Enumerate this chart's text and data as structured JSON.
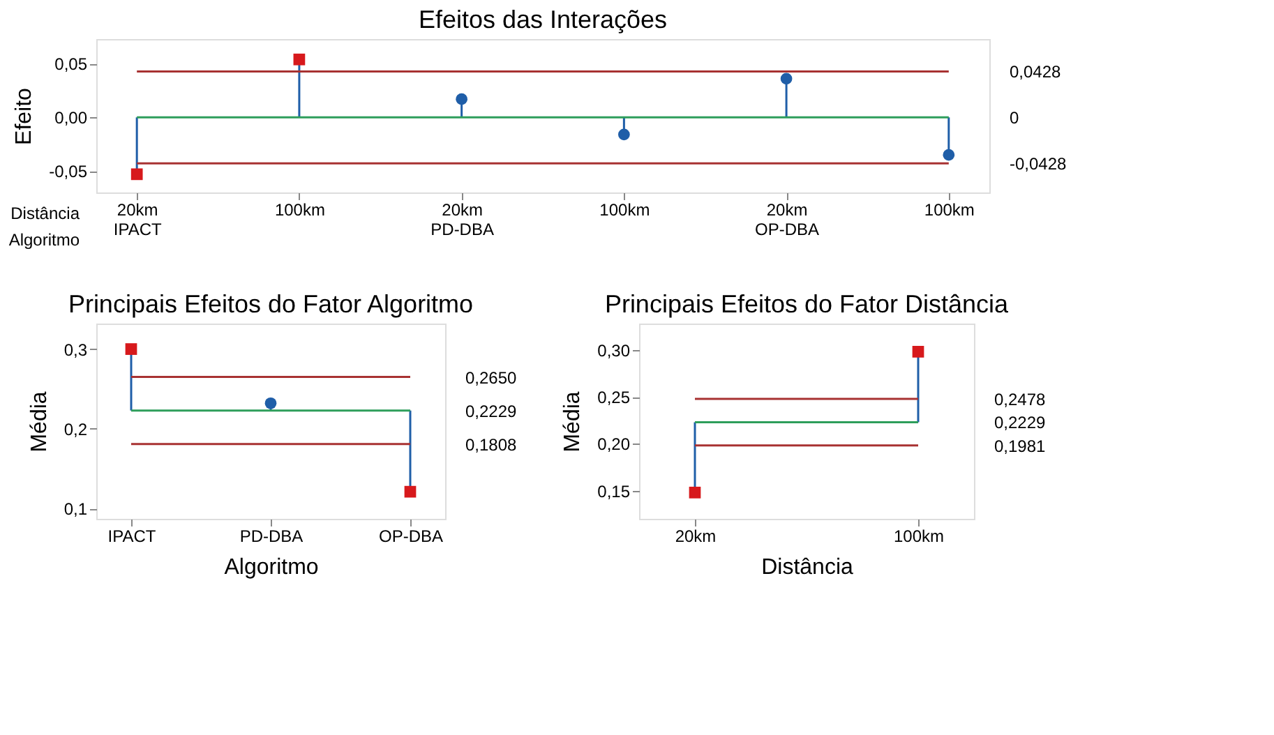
{
  "chart_data": [
    {
      "type": "scatter",
      "title": "Efeitos das Interações",
      "ylabel": "Efeito",
      "categories": [
        "20km\nIPACT",
        "100km",
        "20km\nPD-DBA",
        "100km",
        "20km\nOP-DBA",
        "100km"
      ],
      "annotations": [
        "Distância",
        "Algoritmo"
      ],
      "ylim": [
        -0.07,
        0.073
      ],
      "yticks": [
        {
          "value": -0.05,
          "label": "-0,05"
        },
        {
          "value": 0,
          "label": "0,00"
        },
        {
          "value": 0.05,
          "label": "0,05"
        }
      ],
      "y2lim": [
        -0.07,
        0.073
      ],
      "y2ticks": [
        {
          "value": -0.0428,
          "label": "-0,0428"
        },
        0,
        {
          "value": 0.0428,
          "label": "0,0428"
        }
      ],
      "grid": false,
      "series": [
        {
          "color": "#1f5ea8",
          "marker": "circle",
          "colors": [
            "#1f5ea8",
            "#1f5ea8",
            "#1f5ea8",
            "#1f5ea8",
            "#1f5ea8",
            "#1f5ea8"
          ],
          "values": [
            null,
            null,
            0.017,
            -0.016,
            0.036,
            -0.035
          ],
          "errors": [
            null,
            null,
            [
              0,
              0.017
            ],
            [
              -0.016,
              0
            ],
            [
              0,
              0.036
            ],
            [
              -0.035,
              0
            ]
          ]
        },
        {
          "color": "#1f5ea8",
          "marker": "square",
          "colors": [
            "#d7191c",
            "#d7191c",
            "#d7191c",
            "#d7191c",
            "#d7191c",
            "#d7191c"
          ],
          "values": [
            -0.053,
            0.054,
            null,
            null,
            null,
            null
          ],
          "errors": [
            [
              -0.053,
              0
            ],
            [
              0,
              0.054
            ],
            null,
            null,
            null,
            null
          ]
        }
      ],
      "ref_lines": [
        {
          "axis": "y2",
          "value": 0.0428,
          "color": "#a83232"
        },
        {
          "axis": "y2",
          "value": 0,
          "color": "#2e9e5b"
        },
        {
          "axis": "y2",
          "value": -0.0428,
          "color": "#a83232"
        }
      ]
    },
    {
      "type": "scatter",
      "title": "Principais Efeitos do Fator Algoritmo",
      "ylabel": "Média",
      "xlabel": "Algoritmo",
      "categories": [
        "IPACT",
        "PD-DBA",
        "OP-DBA"
      ],
      "ylim": [
        0.087,
        0.332
      ],
      "yticks": [
        {
          "value": 0.1,
          "label": "0,1"
        },
        {
          "value": 0.2,
          "label": "0,2"
        },
        {
          "value": 0.3,
          "label": "0,3"
        }
      ],
      "y2lim": [
        0.087,
        0.332
      ],
      "y2ticks": [
        {
          "value": 0.1808,
          "label": "0,1808"
        },
        {
          "value": 0.2229,
          "label": "0,2229"
        },
        {
          "value": 0.265,
          "label": "0,2650"
        }
      ],
      "grid": false,
      "series": [
        {
          "color": "#1f5ea8",
          "marker": "circle",
          "colors": [
            "#1f5ea8",
            "#1f5ea8",
            "#1f5ea8"
          ],
          "values": [
            null,
            0.232,
            null
          ],
          "errors": [
            null,
            [
              0.2229,
              0.232
            ],
            null
          ]
        },
        {
          "color": "#1f5ea8",
          "marker": "square",
          "colors": [
            "#d7191c",
            "#d7191c",
            "#d7191c"
          ],
          "values": [
            0.3,
            null,
            0.121
          ],
          "errors": [
            [
              0.2229,
              0.3
            ],
            null,
            [
              0.121,
              0.2229
            ]
          ]
        }
      ],
      "ref_lines": [
        {
          "axis": "y2",
          "value": 0.265,
          "color": "#a83232"
        },
        {
          "axis": "y2",
          "value": 0.2229,
          "color": "#2e9e5b"
        },
        {
          "axis": "y2",
          "value": 0.1808,
          "color": "#a83232"
        }
      ]
    },
    {
      "type": "scatter",
      "title": "Principais Efeitos do Fator Distância",
      "ylabel": "Média",
      "xlabel": "Distância",
      "categories": [
        "20km",
        "100km"
      ],
      "ylim": [
        0.12,
        0.328
      ],
      "yticks": [
        {
          "value": 0.15,
          "label": "0,15"
        },
        {
          "value": 0.2,
          "label": "0,20"
        },
        {
          "value": 0.25,
          "label": "0,25"
        },
        {
          "value": 0.3,
          "label": "0,30"
        }
      ],
      "y2lim": [
        0.12,
        0.328
      ],
      "y2ticks": [
        {
          "value": 0.1981,
          "label": "0,1981"
        },
        {
          "value": 0.2229,
          "label": "0,2229"
        },
        {
          "value": 0.2478,
          "label": "0,2478"
        }
      ],
      "grid": false,
      "series": [
        {
          "color": "#1f5ea8",
          "marker": "square",
          "colors": [
            "#d7191c",
            "#d7191c"
          ],
          "values": [
            0.148,
            0.298
          ],
          "errors": [
            [
              0.148,
              0.2229
            ],
            [
              0.2229,
              0.298
            ]
          ]
        }
      ],
      "ref_lines": [
        {
          "axis": "y2",
          "value": 0.2478,
          "color": "#a83232"
        },
        {
          "axis": "y2",
          "value": 0.2229,
          "color": "#2e9e5b"
        },
        {
          "axis": "y2",
          "value": 0.1981,
          "color": "#a83232"
        }
      ]
    }
  ]
}
